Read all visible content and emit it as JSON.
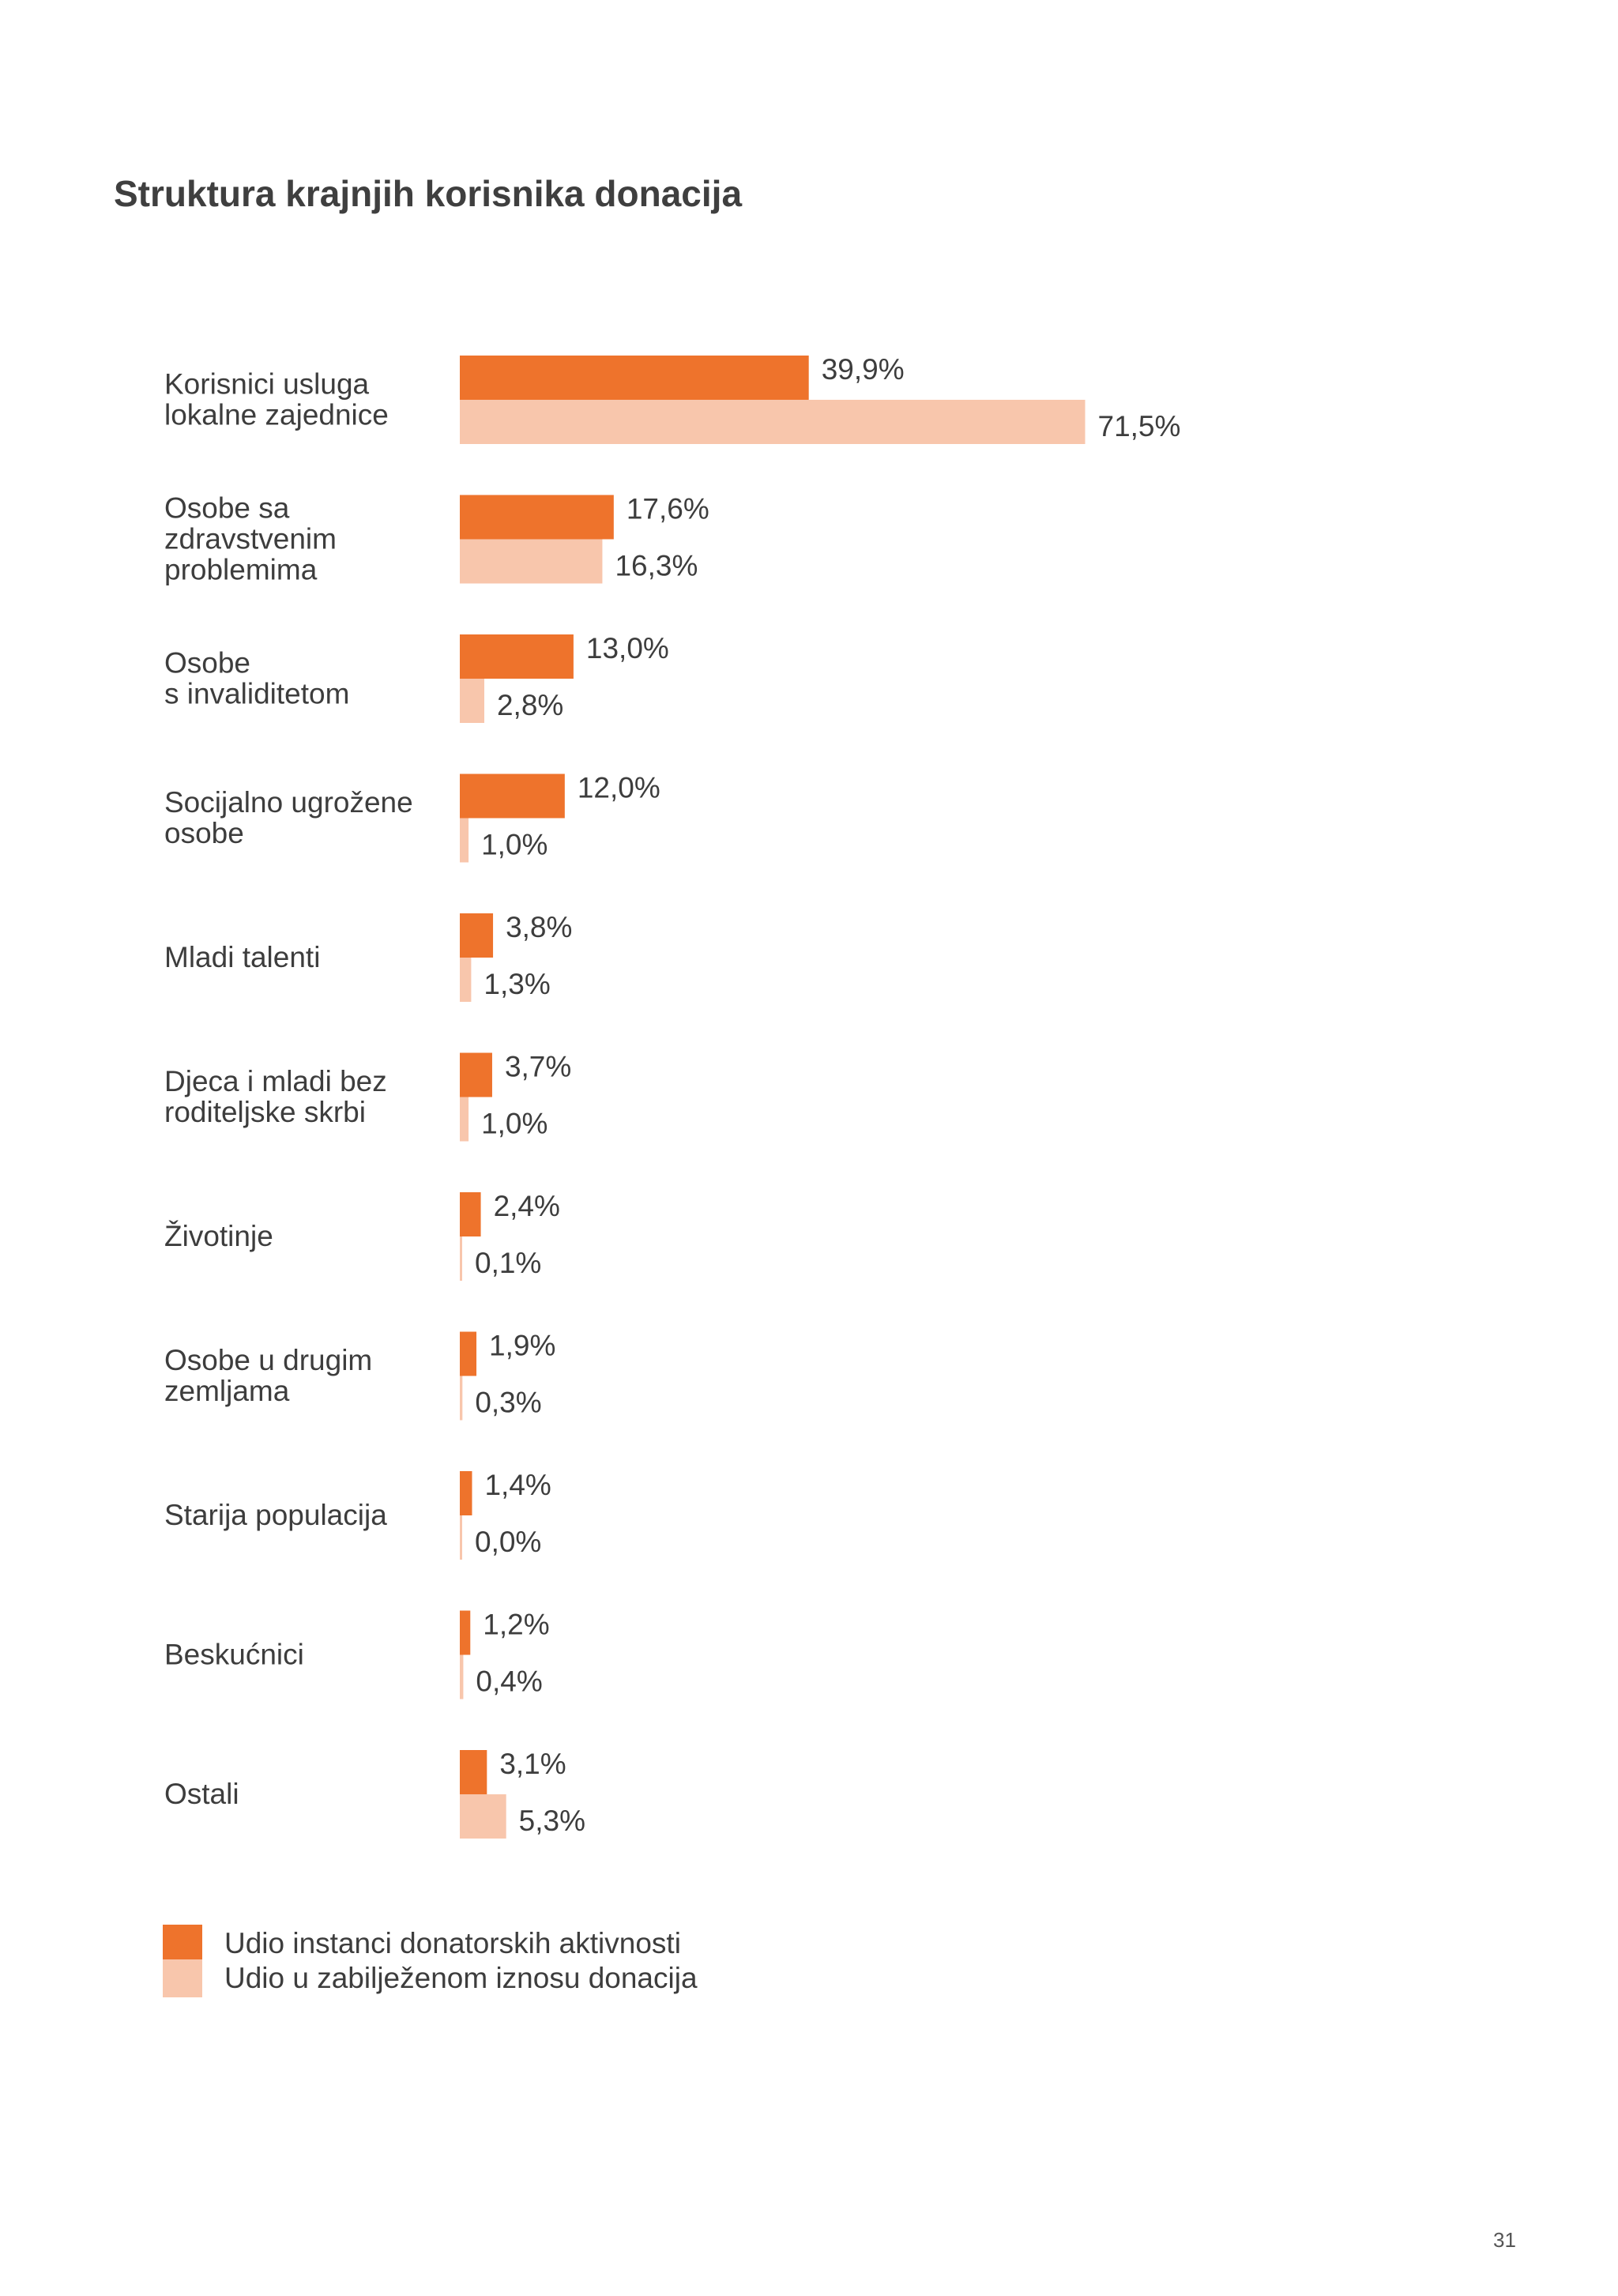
{
  "chart_data": {
    "type": "bar",
    "orientation": "horizontal",
    "title": "Struktura krajnjih korisnika donacija",
    "categories": [
      [
        "Korisnici usluga",
        "lokalne zajednice"
      ],
      [
        "Osobe sa",
        "zdravstvenim",
        "problemima"
      ],
      [
        "Osobe",
        "s invaliditetom"
      ],
      [
        "Socijalno ugrožene",
        "osobe"
      ],
      [
        "Mladi talenti"
      ],
      [
        "Djeca i mladi bez",
        "roditeljske skrbi"
      ],
      [
        "Životinje"
      ],
      [
        "Osobe u drugim",
        "zemljama"
      ],
      [
        "Starija populacija"
      ],
      [
        "Beskućnici"
      ],
      [
        "Ostali"
      ]
    ],
    "series": [
      {
        "name": "Udio instanci donatorskih aktivnosti",
        "color": "#ee732c",
        "values": [
          39.9,
          17.6,
          13.0,
          12.0,
          3.8,
          3.7,
          2.4,
          1.9,
          1.4,
          1.2,
          3.1
        ],
        "labels": [
          "39,9%",
          "17,6%",
          "13,0%",
          "12,0%",
          "3,8%",
          "3,7%",
          "2,4%",
          "1,9%",
          "1,4%",
          "1,2%",
          "3,1%"
        ]
      },
      {
        "name": "Udio u zabilježenom iznosu donacija",
        "color": "#f8c6ac",
        "values": [
          71.5,
          16.3,
          2.8,
          1.0,
          1.3,
          1.0,
          0.1,
          0.3,
          0.0,
          0.4,
          5.3
        ],
        "labels": [
          "71,5%",
          "16,3%",
          "2,8%",
          "1,0%",
          "1,3%",
          "1,0%",
          "0,1%",
          "0,3%",
          "0,0%",
          "0,4%",
          "5,3%"
        ]
      }
    ],
    "xlabel": "",
    "ylabel": "",
    "legend": "bottom-left",
    "grid": false
  },
  "page_number": "31"
}
